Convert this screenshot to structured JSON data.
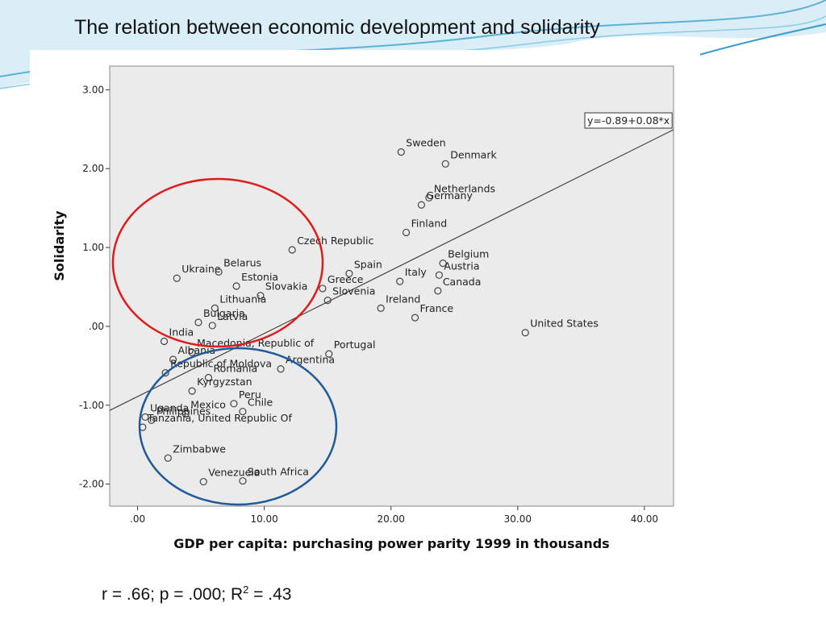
{
  "title": "The relation between economic development and solidarity",
  "footer": [
    "r = .66; p = .000; R",
    "2",
    " = .43"
  ],
  "chart_data": {
    "type": "scatter",
    "x_label": "GDP per capita:  purchasing power parity 1999 in thousands",
    "y_label": "Solidarity",
    "xlim": [
      -2.2,
      42.3
    ],
    "ylim": [
      -2.28,
      3.3
    ],
    "xticks": [
      {
        "value": 0,
        "label": ".00"
      },
      {
        "value": 10,
        "label": "10.00"
      },
      {
        "value": 20,
        "label": "20.00"
      },
      {
        "value": 30,
        "label": "30.00"
      },
      {
        "value": 40,
        "label": "40.00"
      }
    ],
    "yticks": [
      {
        "value": -2,
        "label": "-2.00"
      },
      {
        "value": -1,
        "label": "-1.00"
      },
      {
        "value": 0,
        "label": ".00"
      },
      {
        "value": 1,
        "label": "1.00"
      },
      {
        "value": 2,
        "label": "2.00"
      },
      {
        "value": 3,
        "label": "3.00"
      }
    ],
    "point_labels": [
      "Sweden",
      "Denmark",
      "Netherlands",
      "Germany",
      "Finland",
      "Belgium",
      "Italy",
      "Spain",
      "Austria",
      "Canada",
      "Greece",
      "Slovenia",
      "Ireland",
      "France",
      "United States",
      "Portugal",
      "Czech Republic",
      "Ukraine",
      "Belarus",
      "Estonia",
      "Slovakia",
      "Lithuania",
      "Bulgaria",
      "Latvia",
      "India",
      "Macedonia, Republic of",
      "Albania",
      "Argentina",
      "Republic of Moldova",
      "Romania",
      "Kyrgyzstan",
      "Peru",
      "Chile",
      "Mexico",
      "Uganda",
      "Philippines",
      "Tanzania, United Republic Of",
      "Zimbabwe",
      "South Africa",
      "Venezuela"
    ],
    "x": [
      20.8,
      24.3,
      23.0,
      22.4,
      21.2,
      24.1,
      20.7,
      16.7,
      23.8,
      23.7,
      14.6,
      15.0,
      19.2,
      21.9,
      30.6,
      15.1,
      12.2,
      3.1,
      6.4,
      7.8,
      9.7,
      6.1,
      4.8,
      5.9,
      2.1,
      4.3,
      2.8,
      11.3,
      2.2,
      5.6,
      4.3,
      7.6,
      8.3,
      3.8,
      0.6,
      1.1,
      0.4,
      2.4,
      8.3,
      5.2
    ],
    "values": [
      2.21,
      2.06,
      1.63,
      1.54,
      1.19,
      0.8,
      0.57,
      0.67,
      0.65,
      0.45,
      0.48,
      0.33,
      0.23,
      0.11,
      -0.08,
      -0.35,
      0.97,
      0.61,
      0.69,
      0.51,
      0.39,
      0.23,
      0.05,
      0.01,
      -0.19,
      -0.33,
      -0.42,
      -0.54,
      -0.59,
      -0.65,
      -0.82,
      -0.98,
      -1.08,
      -1.11,
      -1.15,
      -1.19,
      -1.28,
      -1.67,
      -1.96,
      -1.97
    ],
    "fit": {
      "intercept": -0.89,
      "slope": 0.08,
      "label": "y=-0.89+0.08*x"
    }
  }
}
